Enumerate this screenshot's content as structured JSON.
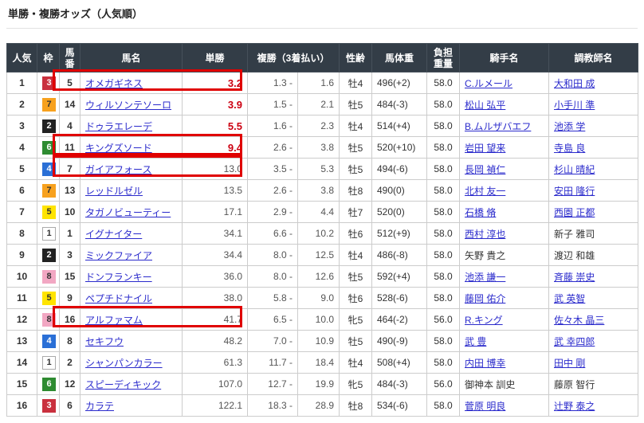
{
  "title": "単勝・複勝オッズ（人気順）",
  "columns": {
    "popularity": "人気",
    "frame": "枠",
    "horse_number": "馬番",
    "horse_name": "馬名",
    "win": "単勝",
    "place": "複勝（3着払い）",
    "sex_age": "性齢",
    "body_weight": "馬体重",
    "load_weight": "負担重量",
    "jockey": "騎手名",
    "trainer": "調教師名"
  },
  "labels": {
    "place_dash": "-"
  },
  "colors": {
    "header_bg": "#333d47",
    "link": "#2b2bcc",
    "hot_odds": "#cc0011",
    "highlight_box": "#e00000",
    "popularity_col_bg": "#efefef"
  },
  "waku_colors": {
    "1": {
      "bg": "#ffffff",
      "fg": "#333333",
      "border": "#aaaaaa"
    },
    "2": {
      "bg": "#222222",
      "fg": "#ffffff"
    },
    "3": {
      "bg": "#c9303e",
      "fg": "#ffffff"
    },
    "4": {
      "bg": "#2a6fd6",
      "fg": "#ffffff"
    },
    "5": {
      "bg": "#ffe400",
      "fg": "#333333"
    },
    "6": {
      "bg": "#2e8b31",
      "fg": "#ffffff"
    },
    "7": {
      "bg": "#f7a11e",
      "fg": "#333333"
    },
    "8": {
      "bg": "#f2a7c3",
      "fg": "#333333"
    }
  },
  "highlights": {
    "rows": [
      1,
      4,
      5,
      12
    ]
  },
  "rows": [
    {
      "popularity": "1",
      "waku": "3",
      "number": "5",
      "name": "オメガギネス",
      "win": "3.2",
      "win_red": true,
      "place_min": "1.3",
      "place_max": "1.6",
      "sex_age": "牡4",
      "weight": "496(+2)",
      "load": "58.0",
      "jockey": "C.ルメール",
      "jockey_link": true,
      "trainer": "大和田 成",
      "trainer_link": true
    },
    {
      "popularity": "2",
      "waku": "7",
      "number": "14",
      "name": "ウィルソンテソーロ",
      "win": "3.9",
      "win_red": true,
      "place_min": "1.5",
      "place_max": "2.1",
      "sex_age": "牡5",
      "weight": "484(-3)",
      "load": "58.0",
      "jockey": "松山 弘平",
      "jockey_link": true,
      "trainer": "小手川 準",
      "trainer_link": true
    },
    {
      "popularity": "3",
      "waku": "2",
      "number": "4",
      "name": "ドゥラエレーデ",
      "win": "5.5",
      "win_red": true,
      "place_min": "1.6",
      "place_max": "2.3",
      "sex_age": "牡4",
      "weight": "514(+4)",
      "load": "58.0",
      "jockey": "B.ムルザバエフ",
      "jockey_link": true,
      "trainer": "池添 学",
      "trainer_link": true
    },
    {
      "popularity": "4",
      "waku": "6",
      "number": "11",
      "name": "キングズソード",
      "win": "9.4",
      "win_red": true,
      "place_min": "2.6",
      "place_max": "3.8",
      "sex_age": "牡5",
      "weight": "520(+10)",
      "load": "58.0",
      "jockey": "岩田 望来",
      "jockey_link": true,
      "trainer": "寺島 良",
      "trainer_link": true
    },
    {
      "popularity": "5",
      "waku": "4",
      "number": "7",
      "name": "ガイアフォース",
      "win": "13.0",
      "win_red": false,
      "place_min": "3.5",
      "place_max": "5.3",
      "sex_age": "牡5",
      "weight": "494(-6)",
      "load": "58.0",
      "jockey": "長岡 禎仁",
      "jockey_link": true,
      "trainer": "杉山 晴紀",
      "trainer_link": true
    },
    {
      "popularity": "6",
      "waku": "7",
      "number": "13",
      "name": "レッドルゼル",
      "win": "13.5",
      "win_red": false,
      "place_min": "2.6",
      "place_max": "3.8",
      "sex_age": "牡8",
      "weight": "490(0)",
      "load": "58.0",
      "jockey": "北村 友一",
      "jockey_link": true,
      "trainer": "安田 隆行",
      "trainer_link": true
    },
    {
      "popularity": "7",
      "waku": "5",
      "number": "10",
      "name": "タガノビューティー",
      "win": "17.1",
      "win_red": false,
      "place_min": "2.9",
      "place_max": "4.4",
      "sex_age": "牡7",
      "weight": "520(0)",
      "load": "58.0",
      "jockey": "石橋 脩",
      "jockey_link": true,
      "trainer": "西園 正都",
      "trainer_link": true
    },
    {
      "popularity": "8",
      "waku": "1",
      "number": "1",
      "name": "イグナイター",
      "win": "34.1",
      "win_red": false,
      "place_min": "6.6",
      "place_max": "10.2",
      "sex_age": "牡6",
      "weight": "512(+9)",
      "load": "58.0",
      "jockey": "西村 淳也",
      "jockey_link": true,
      "trainer": "新子 雅司",
      "trainer_link": false
    },
    {
      "popularity": "9",
      "waku": "2",
      "number": "3",
      "name": "ミックファイア",
      "win": "34.4",
      "win_red": false,
      "place_min": "8.0",
      "place_max": "12.5",
      "sex_age": "牡4",
      "weight": "486(-8)",
      "load": "58.0",
      "jockey": "矢野 貴之",
      "jockey_link": false,
      "trainer": "渡辺 和雄",
      "trainer_link": false
    },
    {
      "popularity": "10",
      "waku": "8",
      "number": "15",
      "name": "ドンフランキー",
      "win": "36.0",
      "win_red": false,
      "place_min": "8.0",
      "place_max": "12.6",
      "sex_age": "牡5",
      "weight": "592(+4)",
      "load": "58.0",
      "jockey": "池添 謙一",
      "jockey_link": true,
      "trainer": "斉藤 崇史",
      "trainer_link": true
    },
    {
      "popularity": "11",
      "waku": "5",
      "number": "9",
      "name": "ペプチドナイル",
      "win": "38.0",
      "win_red": false,
      "place_min": "5.8",
      "place_max": "9.0",
      "sex_age": "牡6",
      "weight": "528(-6)",
      "load": "58.0",
      "jockey": "藤岡 佑介",
      "jockey_link": true,
      "trainer": "武 英智",
      "trainer_link": true
    },
    {
      "popularity": "12",
      "waku": "8",
      "number": "16",
      "name": "アルファマム",
      "win": "41.7",
      "win_red": false,
      "place_min": "6.5",
      "place_max": "10.0",
      "sex_age": "牝5",
      "weight": "464(-2)",
      "load": "56.0",
      "jockey": "R.キング",
      "jockey_link": true,
      "trainer": "佐々木 晶三",
      "trainer_link": true
    },
    {
      "popularity": "13",
      "waku": "4",
      "number": "8",
      "name": "セキフウ",
      "win": "48.2",
      "win_red": false,
      "place_min": "7.0",
      "place_max": "10.9",
      "sex_age": "牡5",
      "weight": "490(-9)",
      "load": "58.0",
      "jockey": "武 豊",
      "jockey_link": true,
      "trainer": "武 幸四郎",
      "trainer_link": true
    },
    {
      "popularity": "14",
      "waku": "1",
      "number": "2",
      "name": "シャンパンカラー",
      "win": "61.3",
      "win_red": false,
      "place_min": "11.7",
      "place_max": "18.4",
      "sex_age": "牡4",
      "weight": "508(+4)",
      "load": "58.0",
      "jockey": "内田 博幸",
      "jockey_link": true,
      "trainer": "田中 剛",
      "trainer_link": true
    },
    {
      "popularity": "15",
      "waku": "6",
      "number": "12",
      "name": "スピーディキック",
      "win": "107.0",
      "win_red": false,
      "place_min": "12.7",
      "place_max": "19.9",
      "sex_age": "牝5",
      "weight": "484(-3)",
      "load": "56.0",
      "jockey": "御神本 訓史",
      "jockey_link": false,
      "trainer": "藤原 智行",
      "trainer_link": false
    },
    {
      "popularity": "16",
      "waku": "3",
      "number": "6",
      "name": "カラテ",
      "win": "122.1",
      "win_red": false,
      "place_min": "18.3",
      "place_max": "28.9",
      "sex_age": "牡8",
      "weight": "534(-6)",
      "load": "58.0",
      "jockey": "菅原 明良",
      "jockey_link": true,
      "trainer": "辻野 泰之",
      "trainer_link": true
    }
  ]
}
